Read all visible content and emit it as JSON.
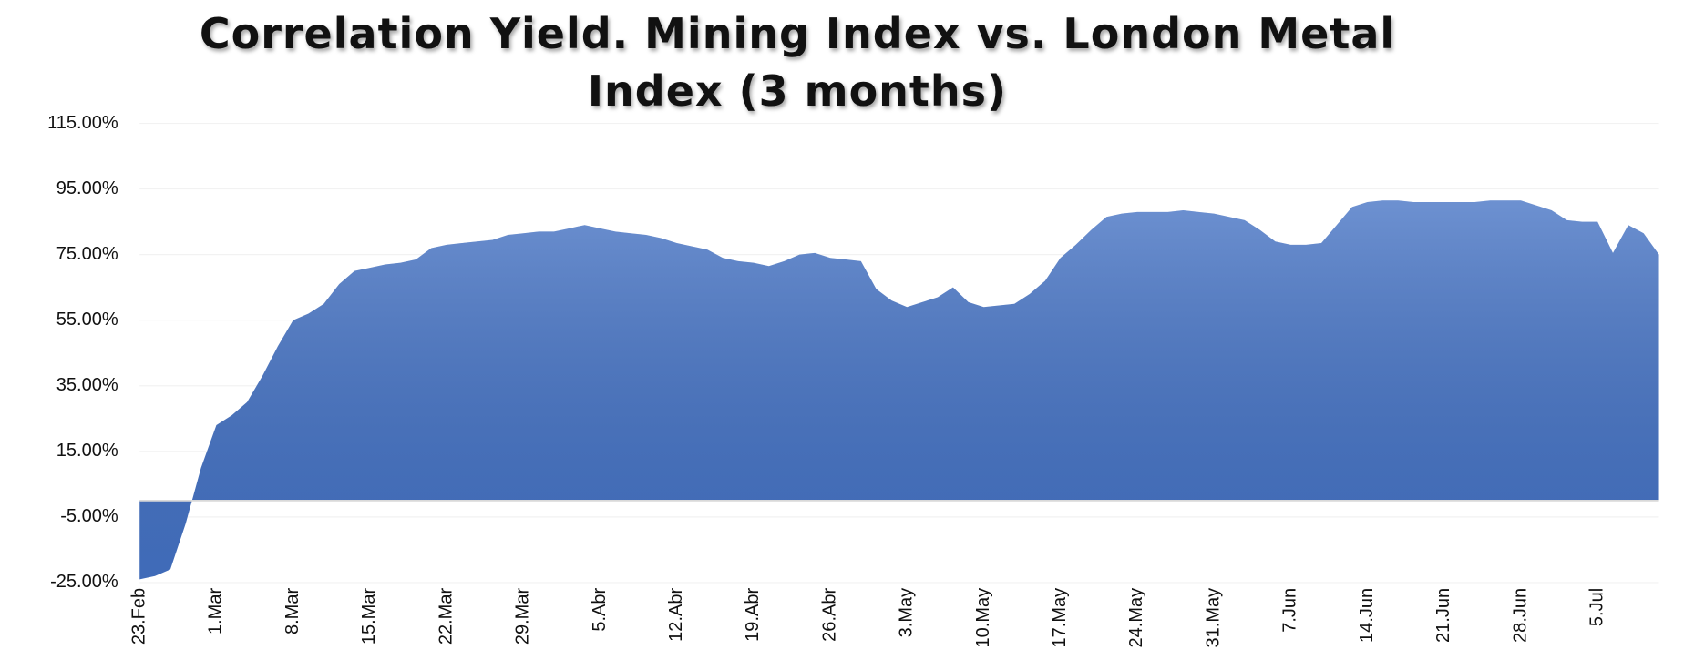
{
  "chart_data": {
    "type": "area",
    "title": "Correlation Yield. Mining Index vs. London Metal Index (3 months)",
    "categories": [
      "23.Feb",
      null,
      null,
      null,
      null,
      "1.Mar",
      null,
      null,
      null,
      null,
      "8.Mar",
      null,
      null,
      null,
      null,
      "15.Mar",
      null,
      null,
      null,
      null,
      "22.Mar",
      null,
      null,
      null,
      null,
      "29.Mar",
      null,
      null,
      null,
      null,
      "5.Abr",
      null,
      null,
      null,
      null,
      "12.Abr",
      null,
      null,
      null,
      null,
      "19.Abr",
      null,
      null,
      null,
      null,
      "26.Abr",
      null,
      null,
      null,
      null,
      "3.May",
      null,
      null,
      null,
      null,
      "10.May",
      null,
      null,
      null,
      null,
      "17.May",
      null,
      null,
      null,
      null,
      "24.May",
      null,
      null,
      null,
      null,
      "31.May",
      null,
      null,
      null,
      null,
      "7.Jun",
      null,
      null,
      null,
      null,
      "14.Jun",
      null,
      null,
      null,
      null,
      "21.Jun",
      null,
      null,
      null,
      null,
      "28.Jun",
      null,
      null,
      null,
      null,
      "5.Jul",
      null,
      null,
      null,
      null
    ],
    "values": [
      -24,
      -23,
      -21,
      -7,
      10,
      23,
      26,
      30,
      38,
      47,
      55,
      57,
      60,
      66,
      70,
      71,
      72,
      72.5,
      73.5,
      77,
      78,
      78.5,
      79,
      79.5,
      81,
      81.5,
      82,
      82,
      83,
      84,
      83,
      82,
      81.5,
      81,
      80,
      78.5,
      77.5,
      76.5,
      74,
      73,
      72.5,
      71.5,
      73,
      75,
      75.5,
      74,
      73.5,
      73,
      64.5,
      61,
      59,
      60.5,
      62,
      65,
      60.5,
      59,
      59.5,
      60,
      63,
      67,
      74,
      78,
      82.5,
      86.5,
      87.5,
      88,
      88,
      88,
      88.5,
      88,
      87.5,
      86.5,
      85.5,
      82.5,
      79,
      78,
      78,
      78.5,
      84,
      89.5,
      91,
      91.5,
      91.5,
      91,
      91,
      91,
      91,
      91,
      91.5,
      91.5,
      91.5,
      90,
      88.5,
      85.5,
      85,
      85,
      75.5,
      84,
      81.5,
      75
    ],
    "color": "#4472c4",
    "ylim": [
      -25,
      115
    ],
    "yticks": [
      {
        "value": -25,
        "label": "-25.00%"
      },
      {
        "value": -5,
        "label": "-5.00%"
      },
      {
        "value": 15,
        "label": "15.00%"
      },
      {
        "value": 35,
        "label": "35.00%"
      },
      {
        "value": 55,
        "label": "55.00%"
      },
      {
        "value": 75,
        "label": "75.00%"
      },
      {
        "value": 95,
        "label": "95.00%"
      },
      {
        "value": 115,
        "label": "115.00%"
      }
    ],
    "grid": true
  }
}
